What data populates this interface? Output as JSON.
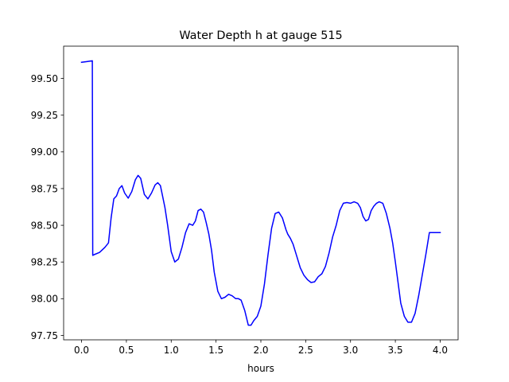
{
  "chart_data": {
    "type": "line",
    "title": "Water Depth h at gauge 515",
    "xlabel": "hours",
    "ylabel": "",
    "xlim": [
      -0.2,
      4.2
    ],
    "ylim": [
      97.72,
      99.72
    ],
    "xticks": [
      0.0,
      0.5,
      1.0,
      1.5,
      2.0,
      2.5,
      3.0,
      3.5,
      4.0
    ],
    "xtick_labels": [
      "0.0",
      "0.5",
      "1.0",
      "1.5",
      "2.0",
      "2.5",
      "3.0",
      "3.5",
      "4.0"
    ],
    "yticks": [
      97.75,
      98.0,
      98.25,
      98.5,
      98.75,
      99.0,
      99.25,
      99.5
    ],
    "ytick_labels": [
      "97.75",
      "98.00",
      "98.25",
      "98.50",
      "98.75",
      "99.00",
      "99.25",
      "99.50"
    ],
    "grid": false,
    "series": [
      {
        "color": "#0000ff",
        "x": [
          0.0,
          0.06,
          0.12,
          0.125,
          0.14,
          0.2,
          0.26,
          0.3,
          0.33,
          0.36,
          0.39,
          0.42,
          0.45,
          0.48,
          0.52,
          0.56,
          0.6,
          0.63,
          0.66,
          0.7,
          0.74,
          0.78,
          0.82,
          0.85,
          0.88,
          0.9,
          0.93,
          0.96,
          1.0,
          1.04,
          1.08,
          1.12,
          1.16,
          1.2,
          1.24,
          1.27,
          1.3,
          1.33,
          1.36,
          1.39,
          1.42,
          1.45,
          1.48,
          1.52,
          1.56,
          1.6,
          1.64,
          1.68,
          1.72,
          1.75,
          1.78,
          1.82,
          1.86,
          1.89,
          1.92,
          1.96,
          2.0,
          2.04,
          2.08,
          2.12,
          2.16,
          2.2,
          2.24,
          2.28,
          2.3,
          2.33,
          2.36,
          2.4,
          2.44,
          2.48,
          2.52,
          2.56,
          2.6,
          2.64,
          2.68,
          2.72,
          2.76,
          2.8,
          2.84,
          2.88,
          2.92,
          2.96,
          3.0,
          3.04,
          3.08,
          3.11,
          3.14,
          3.17,
          3.2,
          3.23,
          3.26,
          3.29,
          3.32,
          3.36,
          3.4,
          3.44,
          3.47,
          3.5,
          3.53,
          3.56,
          3.6,
          3.64,
          3.68,
          3.72,
          3.76,
          3.8,
          3.84,
          3.88,
          3.92,
          3.96,
          4.0
        ],
        "y": [
          99.61,
          99.615,
          99.62,
          98.295,
          98.3,
          98.315,
          98.35,
          98.38,
          98.55,
          98.68,
          98.7,
          98.75,
          98.77,
          98.72,
          98.685,
          98.73,
          98.81,
          98.84,
          98.82,
          98.71,
          98.68,
          98.72,
          98.775,
          98.79,
          98.77,
          98.71,
          98.62,
          98.5,
          98.32,
          98.25,
          98.27,
          98.35,
          98.45,
          98.51,
          98.5,
          98.53,
          98.6,
          98.61,
          98.59,
          98.52,
          98.44,
          98.33,
          98.18,
          98.05,
          98.0,
          98.01,
          98.03,
          98.02,
          98.0,
          98.0,
          97.99,
          97.92,
          97.82,
          97.82,
          97.85,
          97.88,
          97.95,
          98.1,
          98.3,
          98.48,
          98.58,
          98.59,
          98.55,
          98.47,
          98.44,
          98.41,
          98.37,
          98.29,
          98.21,
          98.16,
          98.13,
          98.11,
          98.115,
          98.15,
          98.17,
          98.22,
          98.31,
          98.42,
          98.5,
          98.6,
          98.65,
          98.655,
          98.65,
          98.66,
          98.65,
          98.62,
          98.56,
          98.53,
          98.54,
          98.6,
          98.63,
          98.65,
          98.66,
          98.65,
          98.58,
          98.48,
          98.38,
          98.25,
          98.11,
          97.97,
          97.88,
          97.84,
          97.84,
          97.9,
          98.02,
          98.16,
          98.3,
          98.45,
          98.45,
          98.45,
          98.45
        ]
      }
    ]
  }
}
